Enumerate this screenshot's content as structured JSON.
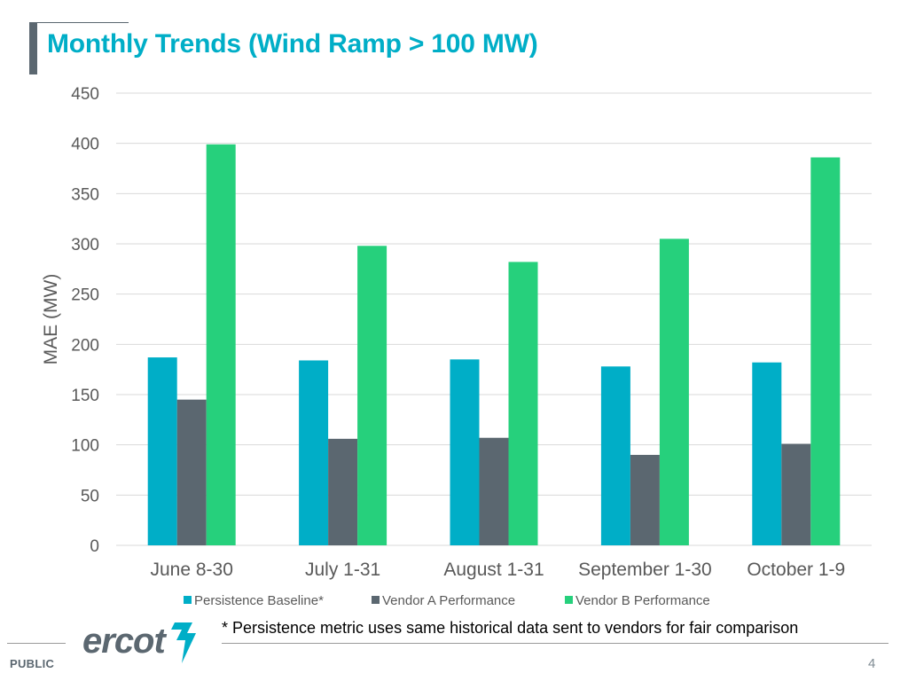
{
  "slide": {
    "title": "Monthly Trends (Wind Ramp > 100 MW)",
    "footnote": "* Persistence metric uses same historical data sent to vendors for fair comparison",
    "footer_label": "PUBLIC",
    "page_number": "4",
    "logo_text": "ercot"
  },
  "colors": {
    "accent": "#00aec7",
    "gray": "#5b6770",
    "green": "#26d07c"
  },
  "chart_data": {
    "type": "bar",
    "title": "",
    "xlabel": "",
    "ylabel": "MAE (MW)",
    "ylim": [
      0,
      450
    ],
    "yticks": [
      0,
      50,
      100,
      150,
      200,
      250,
      300,
      350,
      400,
      450
    ],
    "categories": [
      "June 8-30",
      "July 1-31",
      "August 1-31",
      "September 1-30",
      "October 1-9"
    ],
    "series": [
      {
        "name": "Persistence Baseline*",
        "color": "#00aec7",
        "values": [
          187,
          184,
          185,
          178,
          182
        ]
      },
      {
        "name": "Vendor A Performance",
        "color": "#5b6770",
        "values": [
          145,
          106,
          107,
          90,
          101
        ]
      },
      {
        "name": "Vendor B Performance",
        "color": "#26d07c",
        "values": [
          399,
          298,
          282,
          305,
          386
        ]
      }
    ],
    "grid": true,
    "legend_position": "bottom"
  }
}
